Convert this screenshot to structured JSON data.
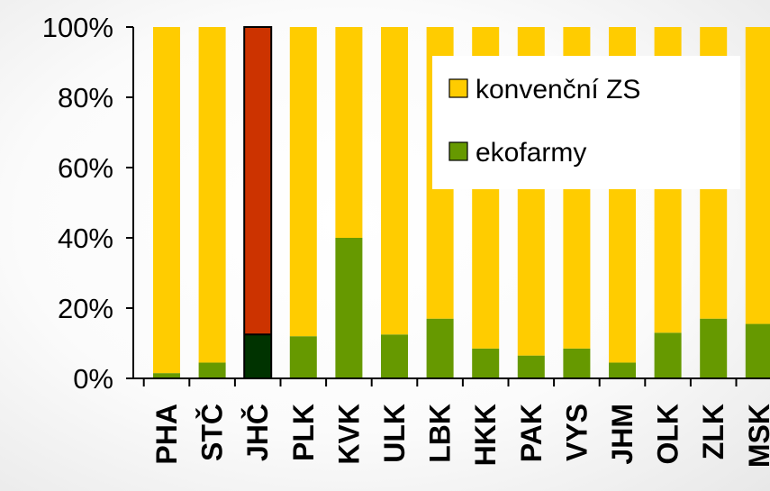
{
  "chart_data": {
    "type": "bar",
    "stacked": true,
    "percent_stacked": true,
    "categories": [
      "PHA",
      "STČ",
      "JHČ",
      "PLK",
      "KVK",
      "ULK",
      "LBK",
      "HKK",
      "PAK",
      "VYS",
      "JHM",
      "OLK",
      "ZLK",
      "MSK"
    ],
    "series": [
      {
        "name": "ekofarmy",
        "color": "#669900",
        "values": [
          1.5,
          4.5,
          12.5,
          12,
          40,
          12.5,
          17,
          8.5,
          6.5,
          8.5,
          4.5,
          13,
          17,
          15.5
        ]
      },
      {
        "name": "konvenční ZS",
        "color": "#ffcc00",
        "values": [
          98.5,
          95.5,
          87.5,
          88,
          60,
          87.5,
          83,
          91.5,
          93.5,
          91.5,
          95.5,
          87,
          83,
          84.5
        ]
      }
    ],
    "highlight": {
      "category": "JHČ",
      "colors": {
        "ekofarmy": "#003300",
        "konvenční ZS": "#cc3300"
      }
    },
    "y_tick_labels": [
      "0%",
      "20%",
      "40%",
      "60%",
      "80%",
      "100%"
    ],
    "ylim": [
      0,
      100
    ],
    "grid": false,
    "legend_position": "top-right",
    "legend_order": [
      "konvenční ZS",
      "ekofarmy"
    ]
  }
}
